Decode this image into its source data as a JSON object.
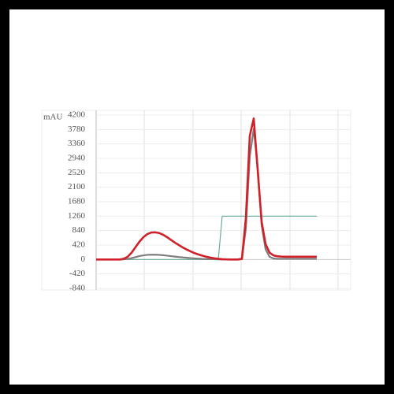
{
  "chart_data": {
    "type": "line",
    "y_axis_label": "mAU",
    "categories": [
      null,
      null,
      null,
      null,
      null,
      null,
      null,
      null,
      null,
      null,
      null,
      null,
      null,
      null,
      null,
      null,
      null,
      null,
      null,
      null,
      null,
      null,
      null,
      null,
      null,
      null,
      null,
      null,
      null,
      null,
      null,
      null,
      null,
      null,
      null,
      null,
      null,
      null,
      null,
      null,
      null,
      null,
      null,
      null,
      null,
      null,
      null,
      null,
      null,
      null,
      null,
      null,
      null,
      null,
      null,
      null,
      null
    ],
    "series": [
      {
        "color": "#6aaa96",
        "values": [
          0,
          0,
          0,
          0,
          0,
          0,
          0,
          0,
          0,
          0,
          0,
          0,
          0,
          0,
          0,
          0,
          0,
          0,
          0,
          0,
          0,
          0,
          0,
          0,
          0,
          0,
          0,
          0,
          0,
          0,
          0,
          0,
          1260,
          1260,
          1260,
          1260,
          1260,
          1260,
          1260,
          1260,
          1260,
          1260,
          1260,
          1260,
          1260,
          1260,
          1260,
          1260,
          1260,
          1260,
          1260,
          1260,
          1260,
          1260,
          1260,
          1260,
          1260
        ]
      },
      {
        "color": "#7d7d7d",
        "values": [
          0,
          0,
          0,
          0,
          0,
          0,
          0,
          5,
          15,
          40,
          70,
          100,
          120,
          135,
          140,
          140,
          135,
          125,
          112,
          98,
          85,
          72,
          60,
          50,
          40,
          32,
          25,
          18,
          13,
          9,
          6,
          3,
          2,
          1,
          0,
          0,
          0,
          10,
          900,
          3000,
          3800,
          2700,
          1000,
          300,
          80,
          30,
          20,
          20,
          20,
          20,
          20,
          20,
          20,
          20,
          20,
          20,
          20
        ]
      },
      {
        "color": "#d0212a",
        "values": [
          0,
          0,
          0,
          0,
          0,
          0,
          0,
          20,
          80,
          200,
          360,
          520,
          650,
          740,
          785,
          790,
          770,
          720,
          650,
          570,
          490,
          420,
          350,
          290,
          235,
          185,
          145,
          110,
          80,
          55,
          35,
          20,
          10,
          5,
          0,
          0,
          0,
          20,
          1200,
          3600,
          4100,
          2600,
          1100,
          450,
          200,
          120,
          95,
          85,
          80,
          80,
          80,
          80,
          80,
          80,
          80,
          80,
          80
        ]
      }
    ],
    "ylim": [
      -840,
      4200
    ],
    "yticks": [
      4200,
      3780,
      3360,
      2940,
      2520,
      2100,
      1680,
      1260,
      840,
      420,
      0,
      -420,
      -840
    ],
    "grid": true
  }
}
